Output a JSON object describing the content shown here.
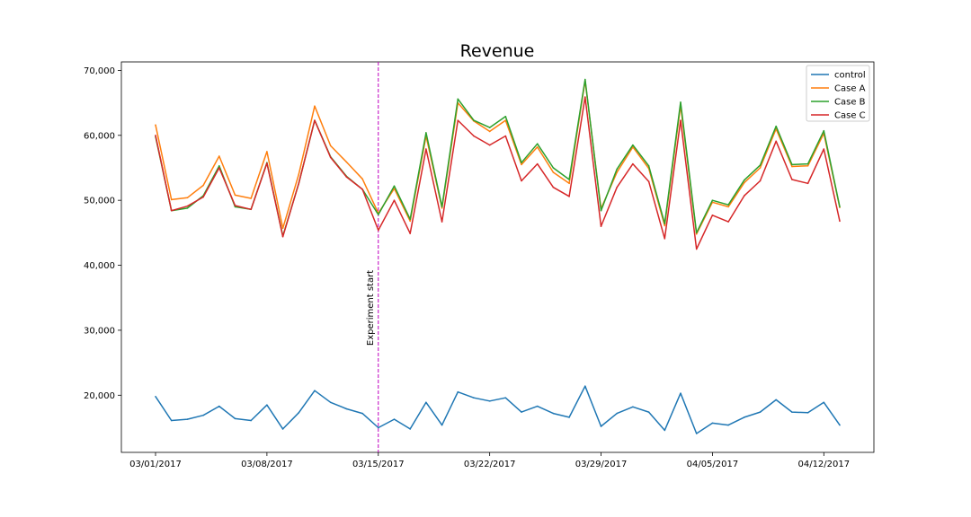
{
  "chart_data": {
    "type": "line",
    "title": "Revenue",
    "xlabel": "",
    "ylabel": "",
    "x": [
      "03/01/2017",
      "03/02/2017",
      "03/03/2017",
      "03/04/2017",
      "03/05/2017",
      "03/06/2017",
      "03/07/2017",
      "03/08/2017",
      "03/09/2017",
      "03/10/2017",
      "03/11/2017",
      "03/12/2017",
      "03/13/2017",
      "03/14/2017",
      "03/15/2017",
      "03/16/2017",
      "03/17/2017",
      "03/18/2017",
      "03/19/2017",
      "03/20/2017",
      "03/21/2017",
      "03/22/2017",
      "03/23/2017",
      "03/24/2017",
      "03/25/2017",
      "03/26/2017",
      "03/27/2017",
      "03/28/2017",
      "03/29/2017",
      "03/30/2017",
      "03/31/2017",
      "04/01/2017",
      "04/02/2017",
      "04/03/2017",
      "04/04/2017",
      "04/05/2017",
      "04/06/2017",
      "04/07/2017",
      "04/08/2017",
      "04/09/2017",
      "04/10/2017",
      "04/11/2017",
      "04/12/2017",
      "04/13/2017"
    ],
    "x_ticks": [
      "03/01/2017",
      "03/08/2017",
      "03/15/2017",
      "03/22/2017",
      "03/29/2017",
      "04/05/2017",
      "04/12/2017"
    ],
    "y_ticks": [
      "20,000",
      "30,000",
      "40,000",
      "50,000",
      "60,000",
      "70,000"
    ],
    "y_tick_values": [
      20000,
      30000,
      40000,
      50000,
      60000,
      70000
    ],
    "ylim": [
      11200,
      71300
    ],
    "grid": false,
    "legend_position": "top-right",
    "series": [
      {
        "name": "control",
        "color": "#1f77b4",
        "values": [
          19800,
          16100,
          16300,
          16900,
          18300,
          16400,
          16100,
          18500,
          14800,
          17300,
          20700,
          18900,
          17900,
          17200,
          15000,
          16300,
          14800,
          18900,
          15400,
          20500,
          19600,
          19100,
          19600,
          17400,
          18300,
          17200,
          16600,
          21400,
          15200,
          17200,
          18200,
          17400,
          14600,
          20300,
          14100,
          15700,
          15400,
          16600,
          17400,
          19300,
          17400,
          17300,
          18900,
          15400
        ]
      },
      {
        "name": "Case A",
        "color": "#ff7f0e",
        "values": [
          61600,
          50100,
          50400,
          52300,
          56800,
          50800,
          50300,
          57500,
          45700,
          54000,
          64500,
          58400,
          55900,
          53300,
          48000,
          51800,
          46800,
          59900,
          48800,
          65000,
          62200,
          60600,
          62300,
          55500,
          58200,
          54300,
          52600,
          68400,
          48700,
          54300,
          58200,
          54900,
          46100,
          64600,
          44800,
          49700,
          49000,
          52700,
          55000,
          61000,
          55200,
          55300,
          60300,
          48900
        ]
      },
      {
        "name": "Case B",
        "color": "#2ca02c",
        "values": [
          59800,
          48400,
          48800,
          50700,
          55300,
          49000,
          48600,
          55800,
          44500,
          52600,
          62300,
          56700,
          53700,
          51700,
          47800,
          52200,
          47100,
          60400,
          49000,
          65600,
          62300,
          61200,
          62900,
          55800,
          58700,
          55000,
          53200,
          68600,
          48400,
          54800,
          58500,
          55300,
          46400,
          65100,
          45000,
          50000,
          49300,
          53100,
          55400,
          61400,
          55500,
          55600,
          60700,
          49000
        ]
      },
      {
        "name": "Case C",
        "color": "#d62728",
        "values": [
          60000,
          48400,
          49100,
          50500,
          55000,
          49200,
          48600,
          55700,
          44400,
          52600,
          62300,
          56600,
          53600,
          51700,
          45400,
          50000,
          44900,
          57900,
          46700,
          62300,
          59900,
          58500,
          59900,
          53000,
          55600,
          52000,
          50600,
          65900,
          46000,
          52000,
          55600,
          52900,
          44100,
          62300,
          42500,
          47700,
          46700,
          50700,
          53000,
          59100,
          53200,
          52600,
          57900,
          46800
        ]
      }
    ],
    "annotations": [
      {
        "text": "Experiment start",
        "x": "03/15/2017",
        "color": "#bf00bf",
        "style": "dashed vertical line"
      }
    ]
  }
}
